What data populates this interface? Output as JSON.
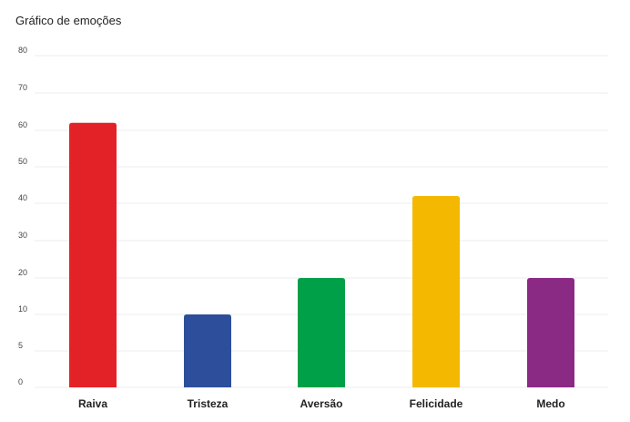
{
  "chart_data": {
    "type": "bar",
    "title": "Gráfico de emoções",
    "xlabel": "",
    "ylabel": "",
    "categories": [
      "Raiva",
      "Tristeza",
      "Aversão",
      "Felicidade",
      "Medo"
    ],
    "values": [
      62,
      10,
      20,
      42,
      20
    ],
    "colors": [
      "#e32228",
      "#2d4e9b",
      "#00a049",
      "#f5b800",
      "#8b2a85"
    ],
    "y_ticks": [
      "80",
      "70",
      "60",
      "50",
      "40",
      "30",
      "20",
      "10",
      "5",
      "0"
    ],
    "y_tick_values": [
      80,
      70,
      60,
      50,
      40,
      30,
      20,
      10,
      5,
      0
    ],
    "ylim": [
      0,
      80
    ],
    "grid": true,
    "legend": "none"
  }
}
